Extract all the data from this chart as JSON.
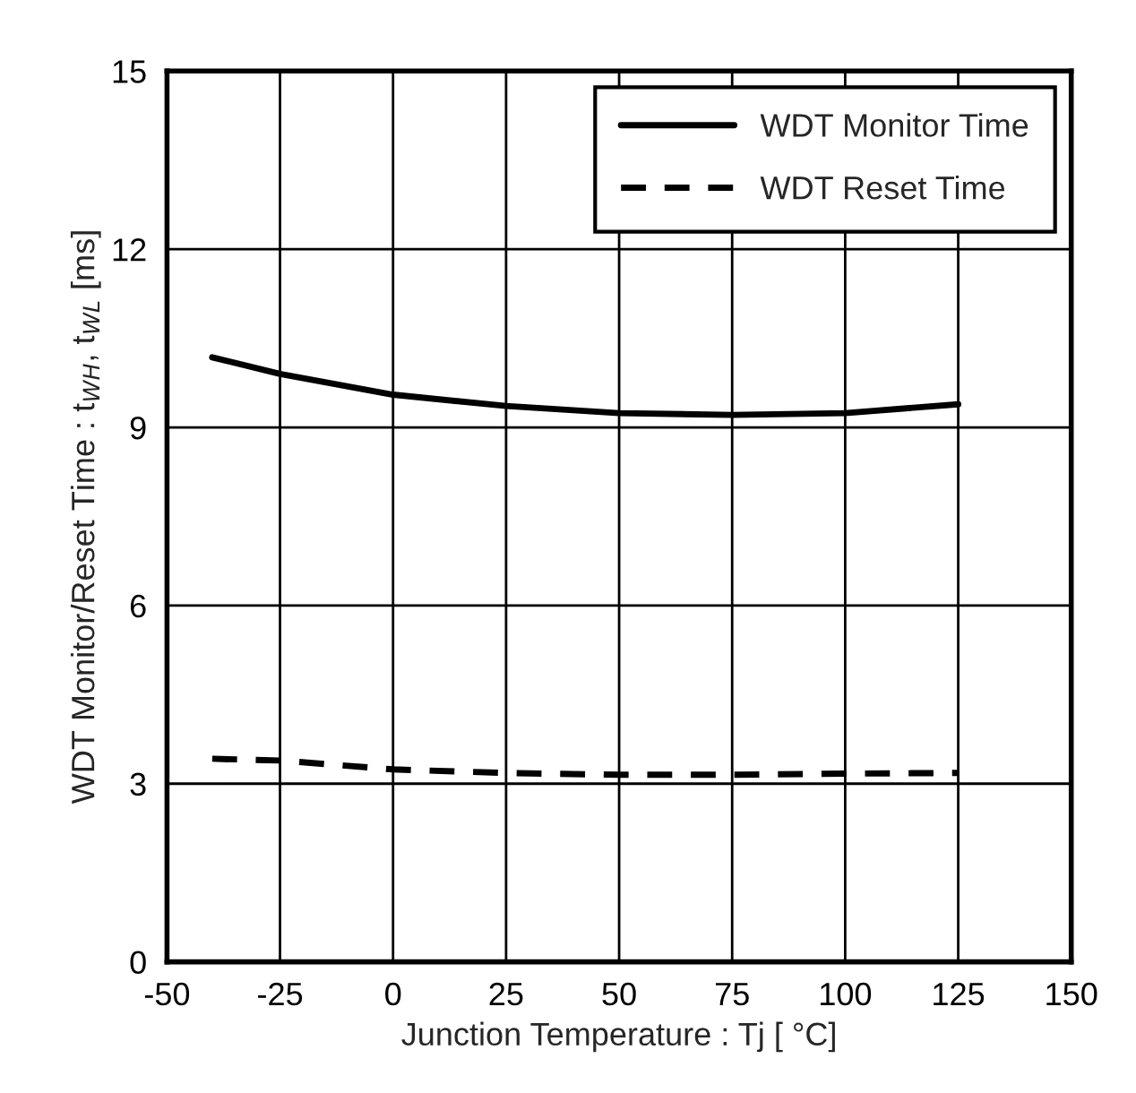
{
  "chart_data": {
    "type": "line",
    "xlabel": "Junction Temperature : Tj [ °C]",
    "ylabel": "WDT Monitor/Reset Time : t$_{WH}$, t$_{WL}$ [ms]",
    "x": [
      -40,
      -25,
      0,
      25,
      50,
      75,
      100,
      125
    ],
    "series": [
      {
        "name": "WDT Monitor Time",
        "color": "#000000",
        "line_style": "solid",
        "values": [
          10.18,
          9.9,
          9.55,
          9.36,
          9.24,
          9.21,
          9.24,
          9.39
        ]
      },
      {
        "name": "WDT Reset Time",
        "color": "#000000",
        "line_style": "dashed",
        "values": [
          3.42,
          3.39,
          3.24,
          3.18,
          3.15,
          3.15,
          3.17,
          3.18
        ]
      }
    ],
    "xlim": [
      -50,
      150
    ],
    "xticks": [
      -50,
      -25,
      0,
      25,
      50,
      75,
      100,
      125,
      150
    ],
    "ylim": [
      0,
      15
    ],
    "yticks": [
      0,
      3,
      6,
      9,
      12,
      15
    ],
    "grid": true,
    "legend": "top right",
    "marker": "none"
  }
}
